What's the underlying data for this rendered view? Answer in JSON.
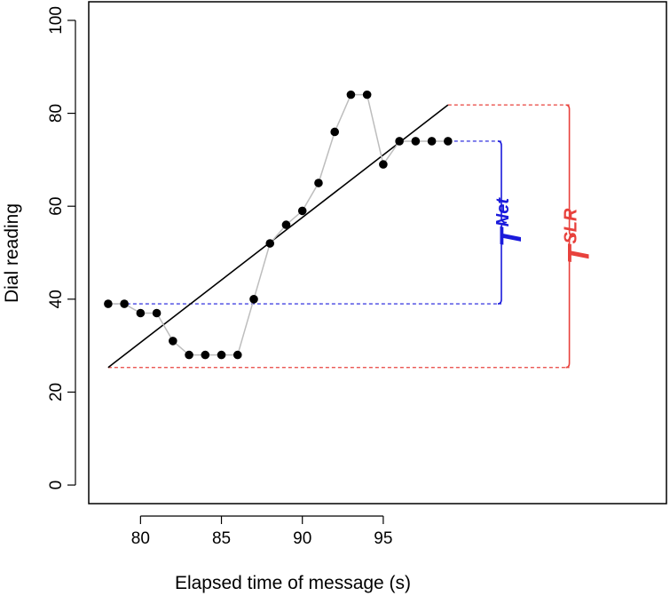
{
  "chart_data": {
    "type": "scatter",
    "xlabel": "Elapsed time of message (s)",
    "ylabel": "Dial reading",
    "xticks": [
      80,
      85,
      90,
      95
    ],
    "yticks": [
      0,
      20,
      40,
      60,
      80,
      100
    ],
    "xlim": [
      76.8,
      112.5
    ],
    "ylim": [
      -4,
      104
    ],
    "grid": false,
    "series": [
      {
        "x": [
          78,
          79,
          80,
          81,
          82,
          83,
          84,
          85,
          86,
          87,
          88,
          89,
          90,
          91,
          92,
          93,
          94,
          95,
          96,
          97,
          98,
          99
        ],
        "y": [
          39,
          39,
          37,
          37,
          31,
          28,
          28,
          28,
          28,
          40,
          52,
          56,
          59,
          65,
          76,
          84,
          84,
          69,
          74,
          74,
          74,
          74
        ],
        "marker_color": "#000000",
        "line_color": "#bdbdbd"
      }
    ],
    "fit_line": {
      "x": [
        78,
        99
      ],
      "y": [
        25.3,
        81.8
      ],
      "color": "#000000"
    },
    "annotations": {
      "net": {
        "label_main": "T",
        "label_sub": "Net",
        "color": "#1a1adb",
        "y_low": 39,
        "y_high": 74,
        "x_start": 78,
        "x_end": 99,
        "bracket_x": 102.3
      },
      "slr": {
        "label_main": "T",
        "label_sub": "SLR",
        "color": "#e8413c",
        "y_low": 25.3,
        "y_high": 81.8,
        "x_start": 78,
        "x_end": 99,
        "bracket_x": 106.5
      }
    }
  }
}
